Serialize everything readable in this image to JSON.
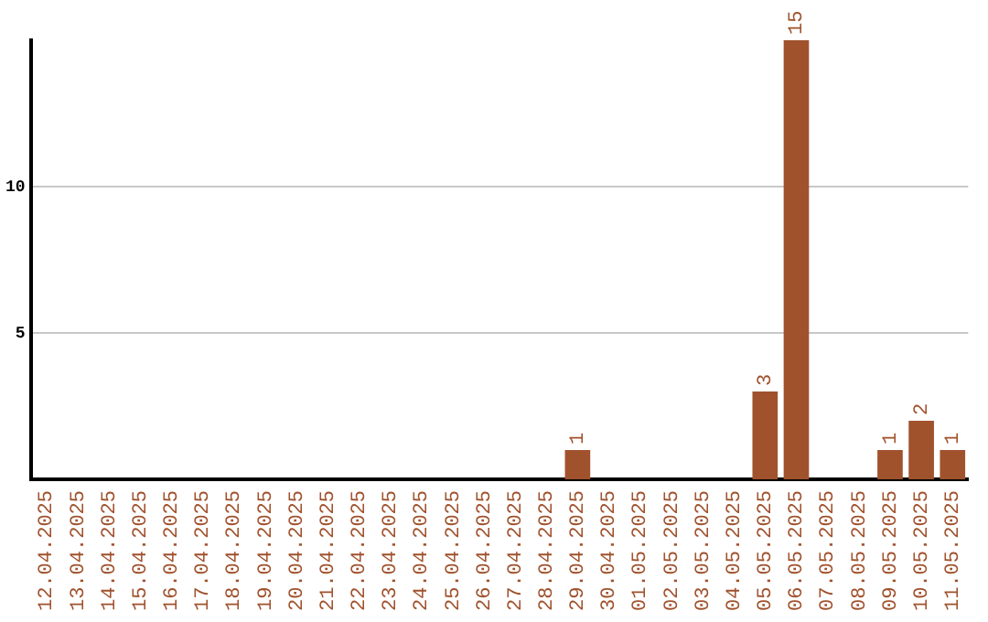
{
  "chart_data": {
    "type": "bar",
    "categories": [
      "12.04.2025",
      "13.04.2025",
      "14.04.2025",
      "15.04.2025",
      "16.04.2025",
      "17.04.2025",
      "18.04.2025",
      "19.04.2025",
      "20.04.2025",
      "21.04.2025",
      "22.04.2025",
      "23.04.2025",
      "24.04.2025",
      "25.04.2025",
      "26.04.2025",
      "27.04.2025",
      "28.04.2025",
      "29.04.2025",
      "30.04.2025",
      "01.05.2025",
      "02.05.2025",
      "03.05.2025",
      "04.05.2025",
      "05.05.2025",
      "06.05.2025",
      "07.05.2025",
      "08.05.2025",
      "09.05.2025",
      "10.05.2025",
      "11.05.2025"
    ],
    "values": [
      0,
      0,
      0,
      0,
      0,
      0,
      0,
      0,
      0,
      0,
      0,
      0,
      0,
      0,
      0,
      0,
      0,
      1,
      0,
      0,
      0,
      0,
      0,
      3,
      15,
      0,
      0,
      1,
      2,
      1
    ],
    "color": "#a0522d",
    "ylim": [
      0,
      15
    ],
    "yticks": [
      5,
      10
    ],
    "value_labels": [
      null,
      null,
      null,
      null,
      null,
      null,
      null,
      null,
      null,
      null,
      null,
      null,
      null,
      null,
      null,
      null,
      null,
      "1",
      null,
      null,
      null,
      null,
      null,
      "3",
      "15",
      null,
      null,
      "1",
      "2",
      "1"
    ],
    "grid": "y",
    "legend": false
  }
}
